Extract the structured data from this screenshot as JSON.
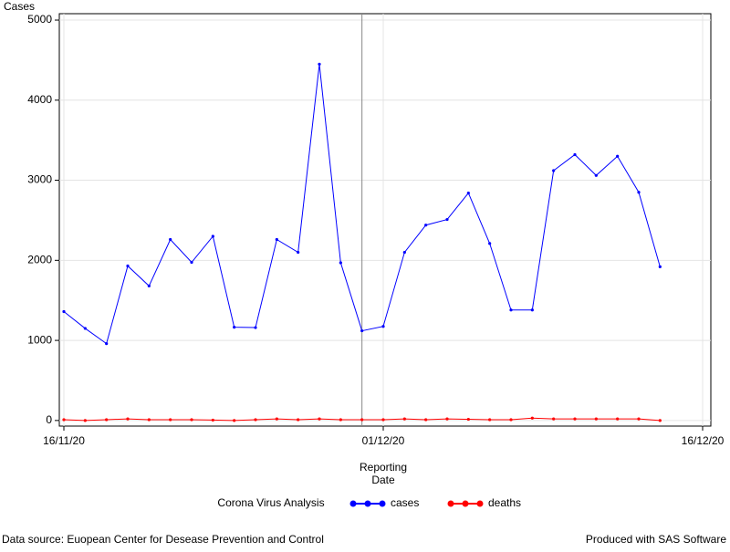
{
  "chart_data": {
    "type": "line",
    "y_label": "Cases",
    "x_label": "Reporting Date",
    "legend_title": "Corona Virus Analysis",
    "footnote_left": "Data source: Euopean Center for Desease Prevention and Control",
    "footnote_right": "Produced with SAS Software",
    "x": [
      "16/11/20",
      "17/11/20",
      "18/11/20",
      "19/11/20",
      "20/11/20",
      "21/11/20",
      "22/11/20",
      "23/11/20",
      "24/11/20",
      "25/11/20",
      "26/11/20",
      "27/11/20",
      "28/11/20",
      "29/11/20",
      "30/11/20",
      "01/12/20",
      "02/12/20",
      "03/12/20",
      "04/12/20",
      "05/12/20",
      "06/12/20",
      "07/12/20",
      "08/12/20",
      "09/12/20",
      "10/12/20",
      "11/12/20",
      "12/12/20",
      "13/12/20",
      "14/12/20"
    ],
    "series": [
      {
        "name": "cases",
        "color": "#0000ff",
        "values": [
          1360,
          1150,
          960,
          1930,
          1680,
          2260,
          1975,
          2300,
          1165,
          1160,
          2260,
          2100,
          4450,
          1970,
          1120,
          1175,
          2100,
          2440,
          2510,
          2840,
          2210,
          1380,
          1380,
          3120,
          3320,
          3060,
          3300,
          2850,
          1920
        ]
      },
      {
        "name": "deaths",
        "color": "#ff0000",
        "values": [
          10,
          0,
          10,
          20,
          10,
          10,
          10,
          5,
          0,
          10,
          20,
          10,
          20,
          10,
          10,
          10,
          20,
          10,
          20,
          15,
          10,
          10,
          30,
          20,
          20,
          20,
          20,
          20,
          0
        ]
      }
    ],
    "xlim": [
      "16/11/20",
      "16/12/20"
    ],
    "xticks": [
      "16/11/20",
      "01/12/20",
      "16/12/20"
    ],
    "ylim": [
      -70,
      5080
    ],
    "yticks": [
      0,
      1000,
      2000,
      3000,
      4000,
      5000
    ],
    "reference_line_x": "30/11/20",
    "grid": true
  }
}
